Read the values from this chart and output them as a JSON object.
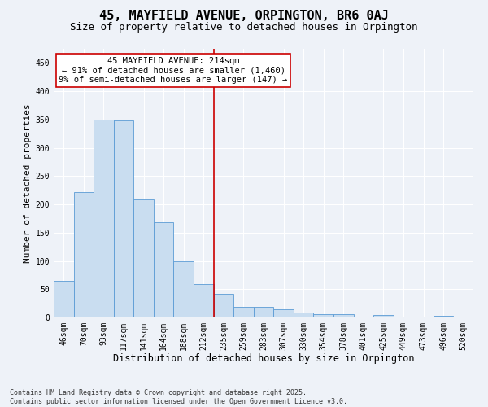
{
  "title": "45, MAYFIELD AVENUE, ORPINGTON, BR6 0AJ",
  "subtitle": "Size of property relative to detached houses in Orpington",
  "xlabel": "Distribution of detached houses by size in Orpington",
  "ylabel": "Number of detached properties",
  "categories": [
    "46sqm",
    "70sqm",
    "93sqm",
    "117sqm",
    "141sqm",
    "164sqm",
    "188sqm",
    "212sqm",
    "235sqm",
    "259sqm",
    "283sqm",
    "307sqm",
    "330sqm",
    "354sqm",
    "378sqm",
    "401sqm",
    "425sqm",
    "449sqm",
    "473sqm",
    "496sqm",
    "520sqm"
  ],
  "values": [
    65,
    222,
    350,
    348,
    208,
    168,
    99,
    59,
    42,
    19,
    18,
    15,
    9,
    6,
    6,
    0,
    4,
    0,
    0,
    3,
    0
  ],
  "bar_color": "#c9ddf0",
  "bar_edge_color": "#5b9bd5",
  "background_color": "#eef2f8",
  "grid_color": "#ffffff",
  "vline_x": 7.5,
  "vline_color": "#cc0000",
  "annotation_text": "45 MAYFIELD AVENUE: 214sqm\n← 91% of detached houses are smaller (1,460)\n9% of semi-detached houses are larger (147) →",
  "annotation_box_color": "#cc0000",
  "ylim": [
    0,
    475
  ],
  "yticks": [
    0,
    50,
    100,
    150,
    200,
    250,
    300,
    350,
    400,
    450
  ],
  "footnote": "Contains HM Land Registry data © Crown copyright and database right 2025.\nContains public sector information licensed under the Open Government Licence v3.0.",
  "title_fontsize": 11,
  "subtitle_fontsize": 9,
  "xlabel_fontsize": 8.5,
  "ylabel_fontsize": 8,
  "tick_fontsize": 7,
  "annotation_fontsize": 7.5,
  "footnote_fontsize": 6
}
